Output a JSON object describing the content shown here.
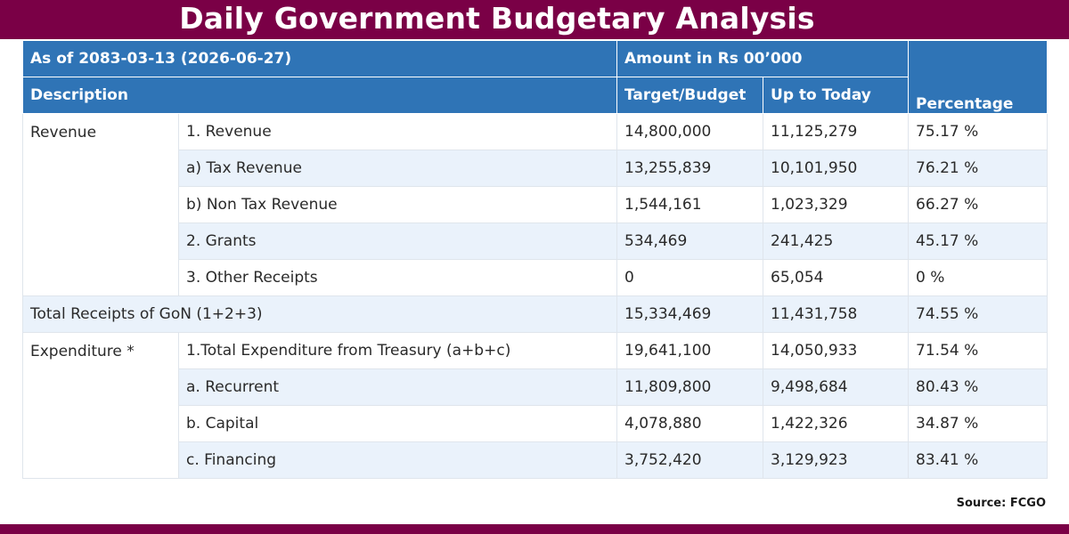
{
  "title": "Daily Government Budgetary Analysis",
  "header": {
    "as_of": "As of 2083-03-13 (2026-06-27)",
    "amount_unit": "Amount in Rs 00’000",
    "description": "Description",
    "target": "Target/Budget",
    "up_to_today": "Up to Today",
    "percentage": "Percentage"
  },
  "revenue_group": "Revenue",
  "revenue_rows": [
    {
      "label": "1. Revenue",
      "target": "14,800,000",
      "today": "11,125,279",
      "pct": "75.17 %"
    },
    {
      "label": "a) Tax Revenue",
      "target": "13,255,839",
      "today": "10,101,950",
      "pct": "76.21 %"
    },
    {
      "label": "b) Non Tax Revenue",
      "target": "1,544,161",
      "today": "1,023,329",
      "pct": "66.27 %"
    },
    {
      "label": "2. Grants",
      "target": "534,469",
      "today": "241,425",
      "pct": "45.17 %"
    },
    {
      "label": "3. Other Receipts",
      "target": "0",
      "today": "65,054",
      "pct": "0 %"
    }
  ],
  "total_row": {
    "label": "Total Receipts of GoN (1+2+3)",
    "target": "15,334,469",
    "today": "11,431,758",
    "pct": "74.55 %"
  },
  "expenditure_group": "Expenditure *",
  "expenditure_rows": [
    {
      "label": "1.Total Expenditure from Treasury (a+b+c)",
      "target": "19,641,100",
      "today": "14,050,933",
      "pct": "71.54 %"
    },
    {
      "label": "a. Recurrent",
      "target": "11,809,800",
      "today": "9,498,684",
      "pct": "80.43 %"
    },
    {
      "label": "b. Capital",
      "target": "4,078,880",
      "today": "1,422,326",
      "pct": "34.87 %"
    },
    {
      "label": "c. Financing",
      "target": "3,752,420",
      "today": "3,129,923",
      "pct": "83.41 %"
    }
  ],
  "source": "Source: FCGO",
  "colors": {
    "brand_bar": "#7a0046",
    "header_blue": "#2f74b6",
    "row_alt": "#eaf2fb"
  }
}
